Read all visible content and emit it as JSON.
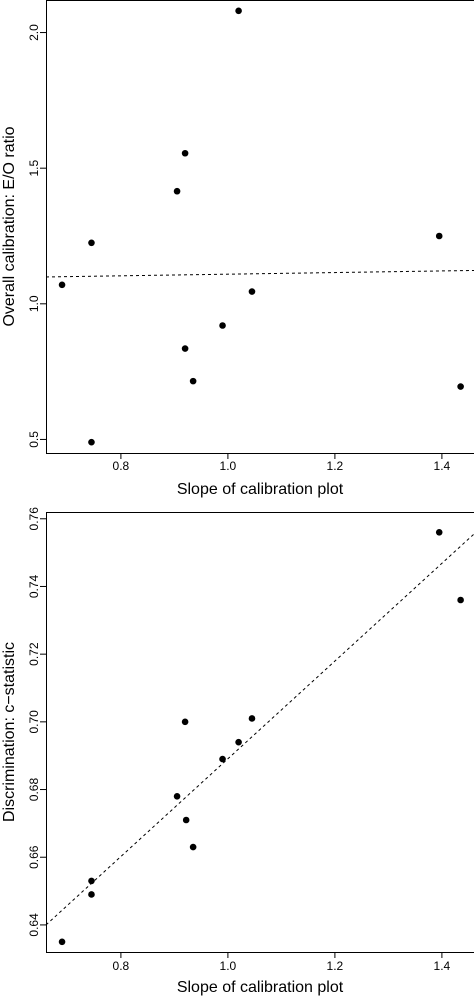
{
  "chart_data": [
    {
      "type": "scatter",
      "title": "",
      "xlabel": "Slope of calibration plot",
      "ylabel": "Overall calibration: E/O ratio",
      "xlim": [
        0.66,
        1.46
      ],
      "ylim": [
        0.45,
        2.12
      ],
      "x_ticks": [
        0.8,
        1.0,
        1.2,
        1.4
      ],
      "x_tick_labels": [
        "0.8",
        "1.0",
        "1.2",
        "1.4"
      ],
      "y_ticks": [
        0.5,
        1.0,
        1.5,
        2.0
      ],
      "y_tick_labels": [
        "0.5",
        "1.0",
        "1.5",
        "2.0"
      ],
      "grid": false,
      "points": [
        {
          "x": 0.69,
          "y": 1.07
        },
        {
          "x": 0.745,
          "y": 1.225
        },
        {
          "x": 0.745,
          "y": 0.49
        },
        {
          "x": 0.905,
          "y": 1.415
        },
        {
          "x": 0.92,
          "y": 1.555
        },
        {
          "x": 0.92,
          "y": 0.835
        },
        {
          "x": 0.935,
          "y": 0.715
        },
        {
          "x": 0.99,
          "y": 0.92
        },
        {
          "x": 1.02,
          "y": 2.08
        },
        {
          "x": 1.045,
          "y": 1.045
        },
        {
          "x": 1.395,
          "y": 1.25
        },
        {
          "x": 1.435,
          "y": 0.695
        }
      ],
      "trend_line": {
        "style": "dashed",
        "x": [
          0.66,
          1.46
        ],
        "y": [
          1.099,
          1.123
        ]
      }
    },
    {
      "type": "scatter",
      "title": "",
      "xlabel": "Slope of calibration plot",
      "ylabel": "Discrimination: c−statistic",
      "xlim": [
        0.66,
        1.46
      ],
      "ylim": [
        0.632,
        0.762
      ],
      "x_ticks": [
        0.8,
        1.0,
        1.2,
        1.4
      ],
      "x_tick_labels": [
        "0.8",
        "1.0",
        "1.2",
        "1.4"
      ],
      "y_ticks": [
        0.64,
        0.66,
        0.68,
        0.7,
        0.72,
        0.74,
        0.76
      ],
      "y_tick_labels": [
        "0.64",
        "0.66",
        "0.68",
        "0.70",
        "0.72",
        "0.74",
        "0.76"
      ],
      "grid": false,
      "points": [
        {
          "x": 0.69,
          "y": 0.635
        },
        {
          "x": 0.745,
          "y": 0.653
        },
        {
          "x": 0.745,
          "y": 0.649
        },
        {
          "x": 0.905,
          "y": 0.678
        },
        {
          "x": 0.92,
          "y": 0.7
        },
        {
          "x": 0.922,
          "y": 0.671
        },
        {
          "x": 0.935,
          "y": 0.663
        },
        {
          "x": 0.99,
          "y": 0.689
        },
        {
          "x": 1.02,
          "y": 0.694
        },
        {
          "x": 1.045,
          "y": 0.701
        },
        {
          "x": 1.395,
          "y": 0.756
        },
        {
          "x": 1.435,
          "y": 0.736
        }
      ],
      "trend_line": {
        "style": "dashed",
        "x": [
          0.66,
          1.46
        ],
        "y": [
          0.64,
          0.7555
        ]
      }
    }
  ]
}
